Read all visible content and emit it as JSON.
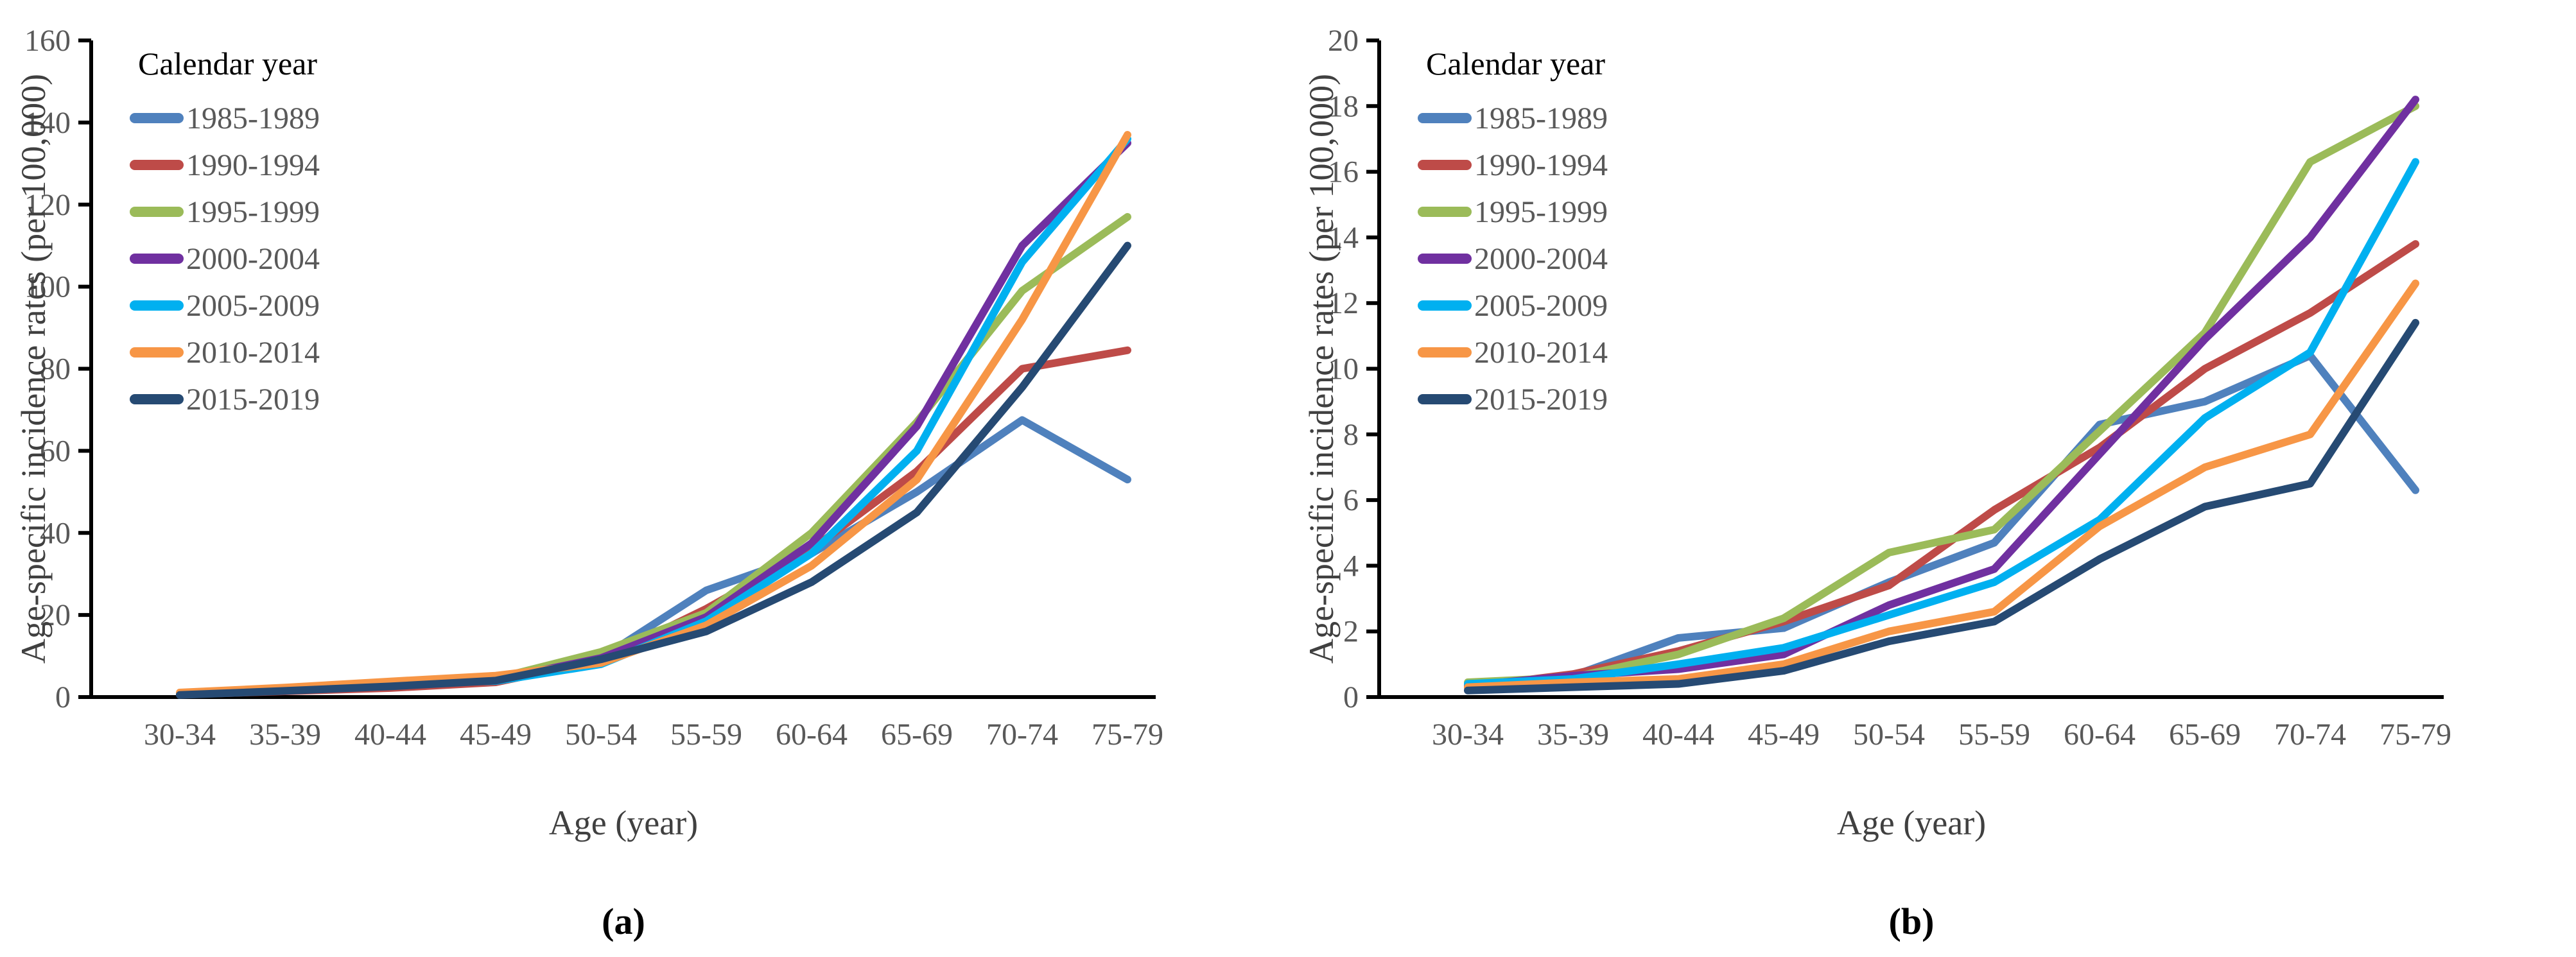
{
  "figure": {
    "background": "#ffffff",
    "text_color_ticks": "#595959",
    "text_color_titles": "#404040",
    "legend_title_color": "#000000",
    "axis_color": "#000000",
    "ylabel": "Age-specific incidence rates (per 100,000)",
    "xlabel": "Age (year)",
    "legend_title": "Calendar year",
    "captions": [
      "(a)",
      "(b)"
    ]
  },
  "chart_data": [
    {
      "type": "line",
      "caption": "(a)",
      "xlabel": "Age (year)",
      "ylabel": "Age-specific incidence rates (per 100,000)",
      "legend_title": "Calendar year",
      "legend_position": "upper-left",
      "grid": false,
      "ylim": [
        0,
        160
      ],
      "ytick_step": 20,
      "categories": [
        "30-34",
        "35-39",
        "40-44",
        "45-49",
        "50-54",
        "55-59",
        "60-64",
        "65-69",
        "70-74",
        "75-79"
      ],
      "series": [
        {
          "name": "1985-1989",
          "color": "#4F81BD",
          "values": [
            0.6,
            1.5,
            2.7,
            4.3,
            9.5,
            26,
            35,
            50,
            67.5,
            53
          ]
        },
        {
          "name": "1990-1994",
          "color": "#BE4B48",
          "values": [
            0.6,
            1.4,
            2.2,
            3.6,
            9.0,
            21.5,
            36,
            55,
            80,
            84.5
          ]
        },
        {
          "name": "1995-1999",
          "color": "#9BBB59",
          "values": [
            0.7,
            1.6,
            2.7,
            4.5,
            11,
            20.5,
            40,
            67,
            99,
            117
          ]
        },
        {
          "name": "2000-2004",
          "color": "#7030A0",
          "values": [
            0.7,
            1.6,
            2.7,
            4.2,
            9.5,
            19.5,
            37.5,
            66,
            110,
            135
          ]
        },
        {
          "name": "2005-2009",
          "color": "#00B0F0",
          "values": [
            0.9,
            2.1,
            3.3,
            3.9,
            8.0,
            18.5,
            35,
            60,
            106,
            136
          ]
        },
        {
          "name": "2010-2014",
          "color": "#F79646",
          "values": [
            1.1,
            2.3,
            3.8,
            5.2,
            8.3,
            17.5,
            32,
            53,
            92,
            137
          ]
        },
        {
          "name": "2015-2019",
          "color": "#264A73",
          "values": [
            0.5,
            1.5,
            2.6,
            4.0,
            9.2,
            16,
            28,
            45,
            75.5,
            110
          ]
        }
      ]
    },
    {
      "type": "line",
      "caption": "(b)",
      "xlabel": "Age (year)",
      "ylabel": "Age-specific incidence rates (per 100,000)",
      "legend_title": "Calendar year",
      "legend_position": "upper-left",
      "grid": false,
      "ylim": [
        0,
        20
      ],
      "ytick_step": 2,
      "categories": [
        "30-34",
        "35-39",
        "40-44",
        "45-49",
        "50-54",
        "55-59",
        "60-64",
        "65-69",
        "70-74",
        "75-79"
      ],
      "series": [
        {
          "name": "1985-1989",
          "color": "#4F81BD",
          "values": [
            0.3,
            0.65,
            1.8,
            2.1,
            3.5,
            4.7,
            8.3,
            9.0,
            10.4,
            6.3
          ]
        },
        {
          "name": "1990-1994",
          "color": "#BE4B48",
          "values": [
            0.3,
            0.7,
            1.4,
            2.3,
            3.4,
            5.7,
            7.6,
            10.0,
            11.7,
            13.8
          ]
        },
        {
          "name": "1995-1999",
          "color": "#9BBB59",
          "values": [
            0.45,
            0.6,
            1.3,
            2.4,
            4.4,
            5.1,
            8.1,
            11.1,
            16.3,
            18.0
          ]
        },
        {
          "name": "2000-2004",
          "color": "#7030A0",
          "values": [
            0.35,
            0.65,
            0.85,
            1.3,
            2.8,
            3.9,
            7.4,
            10.9,
            14.0,
            18.2
          ]
        },
        {
          "name": "2005-2009",
          "color": "#00B0F0",
          "values": [
            0.4,
            0.55,
            1.0,
            1.5,
            2.5,
            3.5,
            5.4,
            8.5,
            10.5,
            16.3
          ]
        },
        {
          "name": "2010-2014",
          "color": "#F79646",
          "values": [
            0.3,
            0.45,
            0.55,
            1.0,
            2.0,
            2.6,
            5.2,
            7.0,
            8.0,
            12.6
          ]
        },
        {
          "name": "2015-2019",
          "color": "#264A73",
          "values": [
            0.2,
            0.3,
            0.4,
            0.8,
            1.7,
            2.3,
            4.2,
            5.8,
            6.5,
            11.4
          ]
        }
      ]
    }
  ]
}
